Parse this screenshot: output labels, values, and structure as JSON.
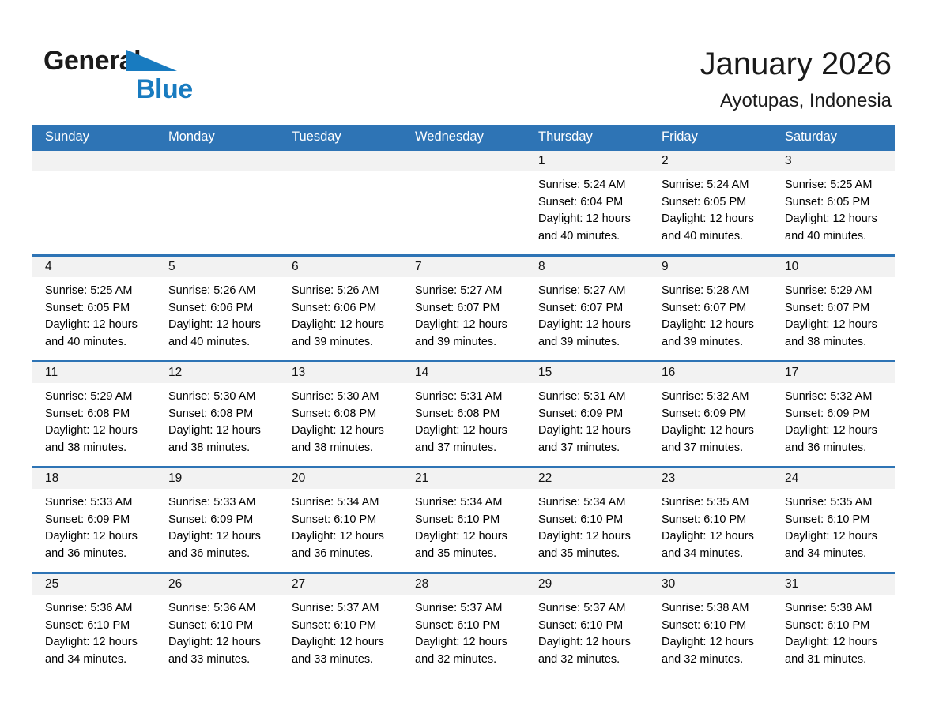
{
  "logo": {
    "word1": "General",
    "word2": "Blue"
  },
  "header": {
    "title": "January 2026",
    "subtitle": "Ayotupas, Indonesia"
  },
  "colors": {
    "header_blue": "#2e74b5",
    "logo_blue": "#187bc0",
    "day_band_gray": "#f2f2f2",
    "text": "#000000"
  },
  "icons": [
    "logo-triangle-icon"
  ],
  "calendar": {
    "weekday_header": [
      "Sunday",
      "Monday",
      "Tuesday",
      "Wednesday",
      "Thursday",
      "Friday",
      "Saturday"
    ],
    "weeks": [
      [
        {
          "day": "",
          "sunrise": "",
          "sunset": "",
          "daylight1": "",
          "daylight2": ""
        },
        {
          "day": "",
          "sunrise": "",
          "sunset": "",
          "daylight1": "",
          "daylight2": ""
        },
        {
          "day": "",
          "sunrise": "",
          "sunset": "",
          "daylight1": "",
          "daylight2": ""
        },
        {
          "day": "",
          "sunrise": "",
          "sunset": "",
          "daylight1": "",
          "daylight2": ""
        },
        {
          "day": "1",
          "sunrise": "Sunrise: 5:24 AM",
          "sunset": "Sunset: 6:04 PM",
          "daylight1": "Daylight: 12 hours",
          "daylight2": "and 40 minutes."
        },
        {
          "day": "2",
          "sunrise": "Sunrise: 5:24 AM",
          "sunset": "Sunset: 6:05 PM",
          "daylight1": "Daylight: 12 hours",
          "daylight2": "and 40 minutes."
        },
        {
          "day": "3",
          "sunrise": "Sunrise: 5:25 AM",
          "sunset": "Sunset: 6:05 PM",
          "daylight1": "Daylight: 12 hours",
          "daylight2": "and 40 minutes."
        }
      ],
      [
        {
          "day": "4",
          "sunrise": "Sunrise: 5:25 AM",
          "sunset": "Sunset: 6:05 PM",
          "daylight1": "Daylight: 12 hours",
          "daylight2": "and 40 minutes."
        },
        {
          "day": "5",
          "sunrise": "Sunrise: 5:26 AM",
          "sunset": "Sunset: 6:06 PM",
          "daylight1": "Daylight: 12 hours",
          "daylight2": "and 40 minutes."
        },
        {
          "day": "6",
          "sunrise": "Sunrise: 5:26 AM",
          "sunset": "Sunset: 6:06 PM",
          "daylight1": "Daylight: 12 hours",
          "daylight2": "and 39 minutes."
        },
        {
          "day": "7",
          "sunrise": "Sunrise: 5:27 AM",
          "sunset": "Sunset: 6:07 PM",
          "daylight1": "Daylight: 12 hours",
          "daylight2": "and 39 minutes."
        },
        {
          "day": "8",
          "sunrise": "Sunrise: 5:27 AM",
          "sunset": "Sunset: 6:07 PM",
          "daylight1": "Daylight: 12 hours",
          "daylight2": "and 39 minutes."
        },
        {
          "day": "9",
          "sunrise": "Sunrise: 5:28 AM",
          "sunset": "Sunset: 6:07 PM",
          "daylight1": "Daylight: 12 hours",
          "daylight2": "and 39 minutes."
        },
        {
          "day": "10",
          "sunrise": "Sunrise: 5:29 AM",
          "sunset": "Sunset: 6:07 PM",
          "daylight1": "Daylight: 12 hours",
          "daylight2": "and 38 minutes."
        }
      ],
      [
        {
          "day": "11",
          "sunrise": "Sunrise: 5:29 AM",
          "sunset": "Sunset: 6:08 PM",
          "daylight1": "Daylight: 12 hours",
          "daylight2": "and 38 minutes."
        },
        {
          "day": "12",
          "sunrise": "Sunrise: 5:30 AM",
          "sunset": "Sunset: 6:08 PM",
          "daylight1": "Daylight: 12 hours",
          "daylight2": "and 38 minutes."
        },
        {
          "day": "13",
          "sunrise": "Sunrise: 5:30 AM",
          "sunset": "Sunset: 6:08 PM",
          "daylight1": "Daylight: 12 hours",
          "daylight2": "and 38 minutes."
        },
        {
          "day": "14",
          "sunrise": "Sunrise: 5:31 AM",
          "sunset": "Sunset: 6:08 PM",
          "daylight1": "Daylight: 12 hours",
          "daylight2": "and 37 minutes."
        },
        {
          "day": "15",
          "sunrise": "Sunrise: 5:31 AM",
          "sunset": "Sunset: 6:09 PM",
          "daylight1": "Daylight: 12 hours",
          "daylight2": "and 37 minutes."
        },
        {
          "day": "16",
          "sunrise": "Sunrise: 5:32 AM",
          "sunset": "Sunset: 6:09 PM",
          "daylight1": "Daylight: 12 hours",
          "daylight2": "and 37 minutes."
        },
        {
          "day": "17",
          "sunrise": "Sunrise: 5:32 AM",
          "sunset": "Sunset: 6:09 PM",
          "daylight1": "Daylight: 12 hours",
          "daylight2": "and 36 minutes."
        }
      ],
      [
        {
          "day": "18",
          "sunrise": "Sunrise: 5:33 AM",
          "sunset": "Sunset: 6:09 PM",
          "daylight1": "Daylight: 12 hours",
          "daylight2": "and 36 minutes."
        },
        {
          "day": "19",
          "sunrise": "Sunrise: 5:33 AM",
          "sunset": "Sunset: 6:09 PM",
          "daylight1": "Daylight: 12 hours",
          "daylight2": "and 36 minutes."
        },
        {
          "day": "20",
          "sunrise": "Sunrise: 5:34 AM",
          "sunset": "Sunset: 6:10 PM",
          "daylight1": "Daylight: 12 hours",
          "daylight2": "and 36 minutes."
        },
        {
          "day": "21",
          "sunrise": "Sunrise: 5:34 AM",
          "sunset": "Sunset: 6:10 PM",
          "daylight1": "Daylight: 12 hours",
          "daylight2": "and 35 minutes."
        },
        {
          "day": "22",
          "sunrise": "Sunrise: 5:34 AM",
          "sunset": "Sunset: 6:10 PM",
          "daylight1": "Daylight: 12 hours",
          "daylight2": "and 35 minutes."
        },
        {
          "day": "23",
          "sunrise": "Sunrise: 5:35 AM",
          "sunset": "Sunset: 6:10 PM",
          "daylight1": "Daylight: 12 hours",
          "daylight2": "and 34 minutes."
        },
        {
          "day": "24",
          "sunrise": "Sunrise: 5:35 AM",
          "sunset": "Sunset: 6:10 PM",
          "daylight1": "Daylight: 12 hours",
          "daylight2": "and 34 minutes."
        }
      ],
      [
        {
          "day": "25",
          "sunrise": "Sunrise: 5:36 AM",
          "sunset": "Sunset: 6:10 PM",
          "daylight1": "Daylight: 12 hours",
          "daylight2": "and 34 minutes."
        },
        {
          "day": "26",
          "sunrise": "Sunrise: 5:36 AM",
          "sunset": "Sunset: 6:10 PM",
          "daylight1": "Daylight: 12 hours",
          "daylight2": "and 33 minutes."
        },
        {
          "day": "27",
          "sunrise": "Sunrise: 5:37 AM",
          "sunset": "Sunset: 6:10 PM",
          "daylight1": "Daylight: 12 hours",
          "daylight2": "and 33 minutes."
        },
        {
          "day": "28",
          "sunrise": "Sunrise: 5:37 AM",
          "sunset": "Sunset: 6:10 PM",
          "daylight1": "Daylight: 12 hours",
          "daylight2": "and 32 minutes."
        },
        {
          "day": "29",
          "sunrise": "Sunrise: 5:37 AM",
          "sunset": "Sunset: 6:10 PM",
          "daylight1": "Daylight: 12 hours",
          "daylight2": "and 32 minutes."
        },
        {
          "day": "30",
          "sunrise": "Sunrise: 5:38 AM",
          "sunset": "Sunset: 6:10 PM",
          "daylight1": "Daylight: 12 hours",
          "daylight2": "and 32 minutes."
        },
        {
          "day": "31",
          "sunrise": "Sunrise: 5:38 AM",
          "sunset": "Sunset: 6:10 PM",
          "daylight1": "Daylight: 12 hours",
          "daylight2": "and 31 minutes."
        }
      ]
    ]
  }
}
